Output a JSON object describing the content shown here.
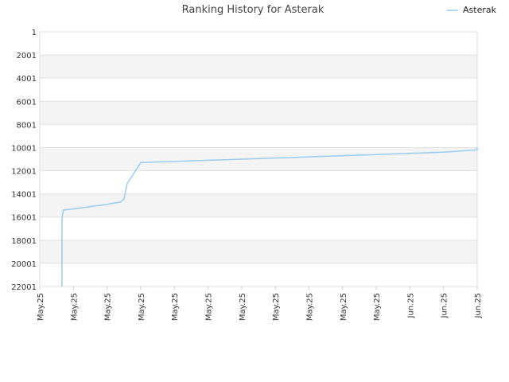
{
  "chart_data": {
    "type": "line",
    "title": "Ranking History for Asterak",
    "xlabel": "",
    "ylabel": "",
    "y_inverted": true,
    "ylim": [
      1,
      22001
    ],
    "ytick_labels": [
      "1",
      "2001",
      "4001",
      "6001",
      "8001",
      "10001",
      "12001",
      "14001",
      "16001",
      "18001",
      "20001",
      "22001"
    ],
    "xtick_labels": [
      "May.25",
      "May.25",
      "May.25",
      "May.25",
      "May.25",
      "May.25",
      "May.25",
      "May.25",
      "May.25",
      "May.25",
      "May.25",
      "Jun.25",
      "Jun.25",
      "Jun.25"
    ],
    "grid": true,
    "grid_banded": true,
    "legend_position": "top-right",
    "series": [
      {
        "name": "Asterak",
        "color": "#99ccee",
        "points": [
          [
            0.66,
            22001
          ],
          [
            0.66,
            16200
          ],
          [
            0.7,
            15400
          ],
          [
            1.0,
            15300
          ],
          [
            1.5,
            15100
          ],
          [
            2.0,
            14900
          ],
          [
            2.4,
            14700
          ],
          [
            2.5,
            14450
          ],
          [
            2.6,
            13100
          ],
          [
            3.0,
            11300
          ],
          [
            4.0,
            11200
          ],
          [
            5.0,
            11100
          ],
          [
            6.0,
            11000
          ],
          [
            7.0,
            10900
          ],
          [
            8.0,
            10800
          ],
          [
            9.0,
            10700
          ],
          [
            10.0,
            10600
          ],
          [
            11.0,
            10500
          ],
          [
            12.0,
            10400
          ],
          [
            13.0,
            10200
          ],
          [
            13.0,
            10000
          ]
        ]
      }
    ]
  }
}
